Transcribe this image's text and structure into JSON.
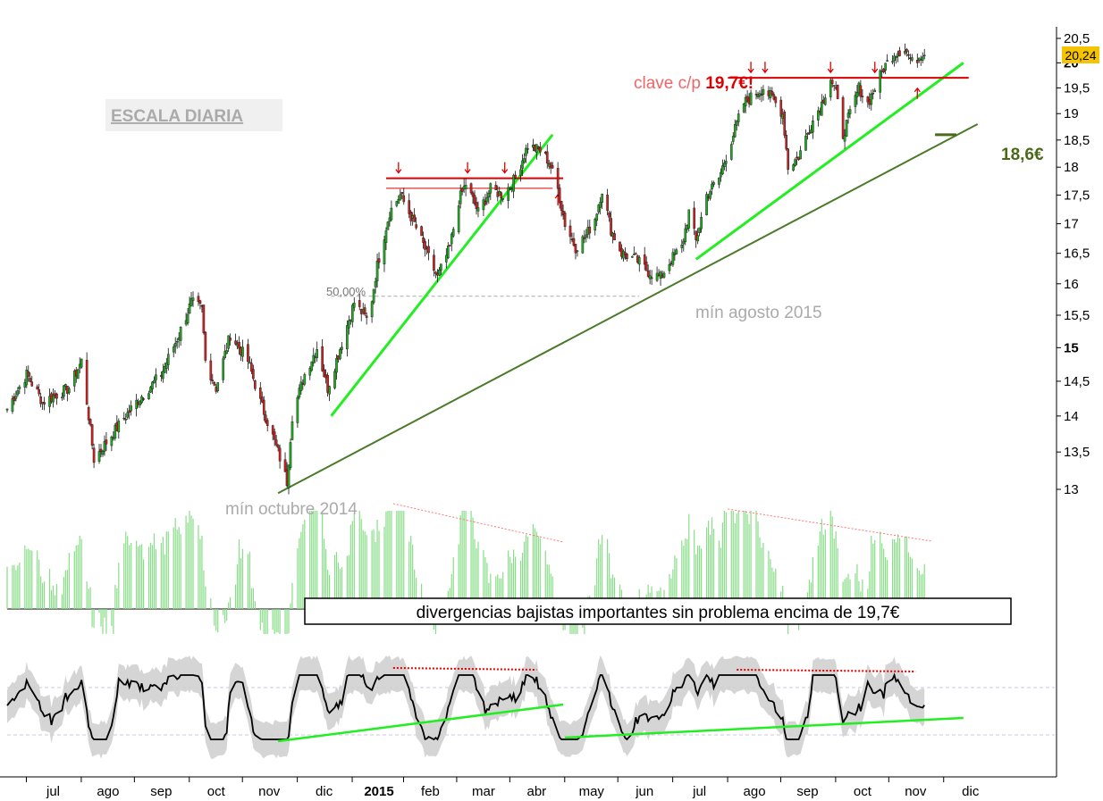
{
  "colors": {
    "up": "#22aa22",
    "down": "#cc2222",
    "resistance": "#dd0000",
    "support": "#22ee22",
    "long_trend": "#4a7a2a",
    "target": "#4a6a1a",
    "volume": "#88dd88",
    "band": "#d0d0d0",
    "band_inner": "#e4e4e4",
    "divergence": "#ff7777",
    "price_box": "#f5c400",
    "muted_text": "#aaaaaa"
  },
  "chart_data": {
    "type": "candlestick",
    "title": "ESCALA DIARIA",
    "y_ticks": [
      "13",
      "13,5",
      "14",
      "14,5",
      "15",
      "15,5",
      "16",
      "16,5",
      "17",
      "17,5",
      "18",
      "18,5",
      "19",
      "19,5",
      "20",
      "20,5"
    ],
    "ylim": [
      12.9,
      20.6
    ],
    "y_scale": "log",
    "x_ticks": [
      "jul",
      "ago",
      "sep",
      "oct",
      "nov",
      "dic",
      "2015",
      "feb",
      "mar",
      "abr",
      "may",
      "jun",
      "jul",
      "ago",
      "sep",
      "oct",
      "nov",
      "dic"
    ],
    "last_price": "20,24",
    "price_anchors": [
      [
        "2014-06-20",
        14.1
      ],
      [
        "2014-07-01",
        14.6
      ],
      [
        "2014-07-10",
        14.2
      ],
      [
        "2014-07-25",
        14.4
      ],
      [
        "2014-08-01",
        14.8
      ],
      [
        "2014-08-08",
        13.4
      ],
      [
        "2014-08-20",
        13.8
      ],
      [
        "2014-09-01",
        14.2
      ],
      [
        "2014-09-15",
        14.6
      ],
      [
        "2014-09-25",
        15.2
      ],
      [
        "2014-10-02",
        15.7
      ],
      [
        "2014-10-08",
        15.6
      ],
      [
        "2014-10-10",
        14.8
      ],
      [
        "2014-10-16",
        14.4
      ],
      [
        "2014-10-24",
        15.2
      ],
      [
        "2014-11-03",
        14.8
      ],
      [
        "2014-11-10",
        14.2
      ],
      [
        "2014-11-20",
        13.5
      ],
      [
        "2014-11-25",
        13.1
      ],
      [
        "2014-11-28",
        14.0
      ],
      [
        "2014-12-05",
        14.6
      ],
      [
        "2014-12-12",
        15.0
      ],
      [
        "2014-12-18",
        14.4
      ],
      [
        "2014-12-24",
        14.9
      ],
      [
        "2015-01-02",
        15.7
      ],
      [
        "2015-01-10",
        15.4
      ],
      [
        "2015-01-15",
        16.3
      ],
      [
        "2015-01-22",
        17.2
      ],
      [
        "2015-01-28",
        17.5
      ],
      [
        "2015-02-05",
        17.0
      ],
      [
        "2015-02-12",
        16.5
      ],
      [
        "2015-02-18",
        16.1
      ],
      [
        "2015-02-25",
        16.6
      ],
      [
        "2015-03-02",
        17.4
      ],
      [
        "2015-03-06",
        17.7
      ],
      [
        "2015-03-13",
        17.2
      ],
      [
        "2015-03-20",
        17.6
      ],
      [
        "2015-03-27",
        17.5
      ],
      [
        "2015-04-03",
        17.8
      ],
      [
        "2015-04-10",
        18.4
      ],
      [
        "2015-04-17",
        18.3
      ],
      [
        "2015-04-22",
        18.1
      ],
      [
        "2015-04-27",
        17.6
      ],
      [
        "2015-05-01",
        17.0
      ],
      [
        "2015-05-07",
        16.6
      ],
      [
        "2015-05-13",
        16.8
      ],
      [
        "2015-05-18",
        17.1
      ],
      [
        "2015-05-22",
        17.6
      ],
      [
        "2015-05-27",
        16.9
      ],
      [
        "2015-06-02",
        16.5
      ],
      [
        "2015-06-10",
        16.4
      ],
      [
        "2015-06-17",
        16.2
      ],
      [
        "2015-06-24",
        16.1
      ],
      [
        "2015-06-30",
        16.4
      ],
      [
        "2015-07-06",
        16.6
      ],
      [
        "2015-07-10",
        17.2
      ],
      [
        "2015-07-14",
        16.7
      ],
      [
        "2015-07-20",
        17.5
      ],
      [
        "2015-07-27",
        17.8
      ],
      [
        "2015-08-03",
        18.5
      ],
      [
        "2015-08-10",
        19.2
      ],
      [
        "2015-08-17",
        19.4
      ],
      [
        "2015-08-21",
        19.5
      ],
      [
        "2015-08-26",
        19.3
      ],
      [
        "2015-09-01",
        19.0
      ],
      [
        "2015-09-04",
        18.0
      ],
      [
        "2015-09-10",
        18.2
      ],
      [
        "2015-09-17",
        18.8
      ],
      [
        "2015-09-23",
        19.2
      ],
      [
        "2015-09-28",
        19.7
      ],
      [
        "2015-10-01",
        19.4
      ],
      [
        "2015-10-05",
        18.6
      ],
      [
        "2015-10-09",
        19.0
      ],
      [
        "2015-10-14",
        19.5
      ],
      [
        "2015-10-19",
        19.2
      ],
      [
        "2015-10-23",
        19.5
      ],
      [
        "2015-10-28",
        19.9
      ],
      [
        "2015-11-03",
        20.2
      ],
      [
        "2015-11-09",
        20.3
      ],
      [
        "2015-11-13",
        20.0
      ],
      [
        "2015-11-16",
        20.1
      ],
      [
        "2015-11-20",
        20.24
      ]
    ],
    "annotations": {
      "resistance_label_prefix": "clave c/p ",
      "resistance_label_value": "19,7€!",
      "target_label": "18,6€",
      "fib_label": "50,00%",
      "min_2014": "mín octubre 2014",
      "min_2015": "mín agosto 2015",
      "divergence_note": "divergencias bajistas importantes sin problema encima de 19,7€"
    },
    "lines": {
      "resistance_2015_spring": {
        "level": 17.8,
        "from": "2015-01-20",
        "to": "2015-04-30"
      },
      "resistance_2015_spring_low": {
        "level": 17.62,
        "from": "2015-01-20",
        "to": "2015-04-24"
      },
      "resistance_19_7": {
        "level": 19.7,
        "from": "2015-08-01",
        "to": "2015-12-15"
      },
      "target_18_6": {
        "level": 18.6,
        "from": "2015-11-26",
        "to": "2015-12-08"
      },
      "fib_50": {
        "level": 15.8,
        "from": "2014-12-20",
        "to": "2015-06-12"
      },
      "support_steep": {
        "from": [
          "2014-12-20",
          14.0
        ],
        "to": [
          "2015-04-24",
          18.6
        ]
      },
      "support_2015_summer": {
        "from": [
          "2015-07-14",
          16.4
        ],
        "to": [
          "2015-12-12",
          20.0
        ]
      },
      "long_trend": {
        "from": [
          "2014-11-20",
          12.95
        ],
        "to": [
          "2015-12-20",
          18.8
        ]
      }
    }
  }
}
